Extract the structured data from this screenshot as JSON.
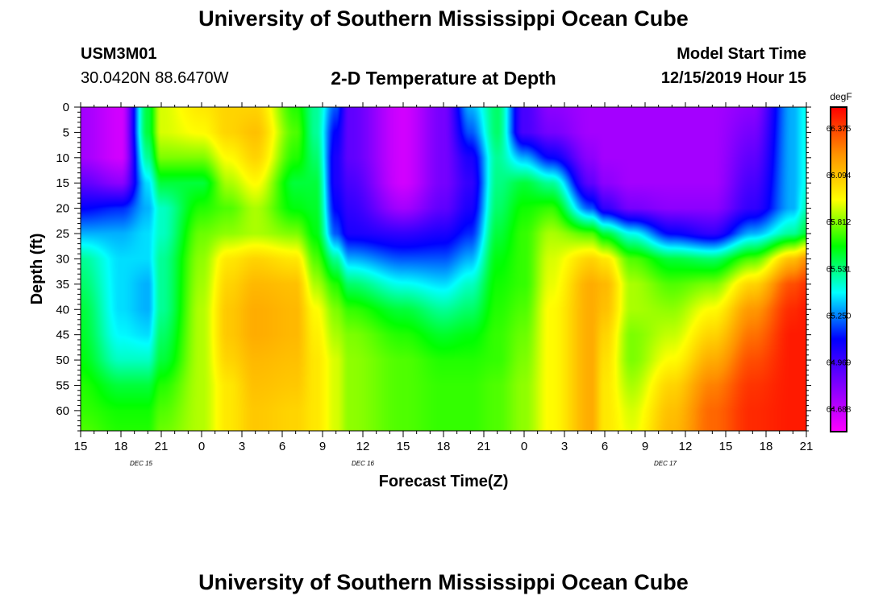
{
  "header": {
    "title": "University of Southern Mississippi Ocean Cube",
    "station": "USM3M01",
    "location": "30.0420N 88.6470W",
    "subtitle": "2-D Temperature at Depth",
    "model_start_label": "Model Start Time",
    "model_start_value": "12/15/2019 Hour 15"
  },
  "footer": {
    "title": "University of Southern Mississippi Ocean Cube"
  },
  "chart_data": {
    "type": "heatmap",
    "xlabel": "Forecast Time(Z)",
    "ylabel": "Depth (ft)",
    "x_ticks": [
      "15",
      "18",
      "21",
      "0",
      "3",
      "6",
      "9",
      "12",
      "15",
      "18",
      "21",
      "0",
      "3",
      "6",
      "9",
      "12",
      "15",
      "18",
      "21"
    ],
    "date_labels": [
      {
        "text": "DEC 15",
        "tick_index": 1.5
      },
      {
        "text": "DEC 16",
        "tick_index": 7
      },
      {
        "text": "DEC 17",
        "tick_index": 14.5
      }
    ],
    "x_range_hours": [
      0,
      54
    ],
    "y_ticks": [
      0,
      5,
      10,
      15,
      20,
      25,
      30,
      35,
      40,
      45,
      50,
      55,
      60
    ],
    "y_range": [
      0,
      64
    ],
    "colorbar": {
      "unit": "degF",
      "ticks": [
        66.375,
        66.094,
        65.812,
        65.531,
        65.25,
        64.969,
        64.688
      ],
      "min": 64.55,
      "max": 66.5,
      "colors": [
        "#ff00ff",
        "#8000ff",
        "#0000ff",
        "#00ffff",
        "#00ff00",
        "#ffff00",
        "#ff9000",
        "#ff0000"
      ]
    },
    "profile_depths": [
      0,
      5,
      10,
      15,
      20,
      25,
      30,
      35,
      40,
      45,
      50,
      55,
      60,
      64
    ],
    "profiles": [
      {
        "hour": 0,
        "t": [
          64.75,
          64.75,
          64.75,
          64.9,
          65.1,
          65.3,
          65.5,
          65.55,
          65.6,
          65.62,
          65.65,
          65.7,
          65.72,
          65.75
        ]
      },
      {
        "hour": 3,
        "t": [
          64.65,
          64.65,
          64.65,
          64.8,
          65.15,
          65.3,
          65.35,
          65.35,
          65.35,
          65.38,
          65.45,
          65.6,
          65.68,
          65.7
        ]
      },
      {
        "hour": 5,
        "t": [
          65.6,
          65.6,
          65.5,
          65.35,
          65.3,
          65.35,
          65.35,
          65.3,
          65.3,
          65.35,
          65.45,
          65.6,
          65.68,
          65.7
        ]
      },
      {
        "hour": 6,
        "t": [
          65.9,
          65.9,
          65.8,
          65.6,
          65.45,
          65.45,
          65.5,
          65.5,
          65.5,
          65.55,
          65.6,
          65.7,
          65.75,
          65.78
        ]
      },
      {
        "hour": 9,
        "t": [
          66.0,
          65.95,
          65.8,
          65.6,
          65.7,
          65.78,
          65.82,
          65.84,
          65.86,
          65.86,
          65.86,
          65.86,
          65.86,
          65.86
        ]
      },
      {
        "hour": 11,
        "t": [
          66.05,
          66.05,
          65.95,
          65.85,
          65.75,
          65.82,
          66.0,
          66.05,
          66.08,
          66.08,
          66.05,
          66.0,
          66.0,
          66.0
        ]
      },
      {
        "hour": 13,
        "t": [
          66.05,
          66.1,
          66.05,
          65.95,
          65.85,
          65.85,
          66.05,
          66.12,
          66.15,
          66.15,
          66.12,
          66.1,
          66.08,
          66.08
        ]
      },
      {
        "hour": 16,
        "t": [
          65.7,
          65.75,
          65.7,
          65.6,
          65.65,
          65.8,
          66.0,
          66.1,
          66.12,
          66.12,
          66.1,
          66.08,
          66.05,
          66.05
        ]
      },
      {
        "hour": 17.5,
        "t": [
          65.5,
          65.5,
          65.55,
          65.6,
          65.62,
          65.65,
          65.75,
          65.85,
          65.95,
          65.98,
          66.0,
          66.0,
          66.0,
          66.0
        ]
      },
      {
        "hour": 19,
        "t": [
          65.2,
          65.1,
          65.05,
          65.05,
          65.1,
          65.2,
          65.5,
          65.7,
          65.8,
          65.85,
          65.9,
          65.9,
          65.9,
          65.9
        ]
      },
      {
        "hour": 20,
        "t": [
          64.9,
          64.9,
          64.9,
          64.95,
          65.0,
          65.05,
          65.3,
          65.55,
          65.72,
          65.8,
          65.82,
          65.82,
          65.82,
          65.82
        ]
      },
      {
        "hour": 24,
        "t": [
          64.65,
          64.65,
          64.65,
          64.65,
          64.75,
          65.0,
          65.2,
          65.4,
          65.6,
          65.7,
          65.75,
          65.75,
          65.75,
          65.75
        ]
      },
      {
        "hour": 27,
        "t": [
          64.85,
          64.85,
          64.85,
          64.85,
          64.9,
          65.05,
          65.2,
          65.35,
          65.5,
          65.62,
          65.7,
          65.72,
          65.72,
          65.72
        ]
      },
      {
        "hour": 29,
        "t": [
          65.3,
          65.2,
          65.05,
          65.0,
          65.05,
          65.15,
          65.3,
          65.45,
          65.55,
          65.65,
          65.7,
          65.72,
          65.72,
          65.72
        ]
      },
      {
        "hour": 31,
        "t": [
          65.55,
          65.55,
          65.5,
          65.52,
          65.55,
          65.6,
          65.65,
          65.68,
          65.7,
          65.72,
          65.72,
          65.75,
          65.75,
          65.75
        ]
      },
      {
        "hour": 33,
        "t": [
          64.95,
          64.95,
          65.3,
          65.6,
          65.68,
          65.72,
          65.72,
          65.72,
          65.75,
          65.78,
          65.8,
          65.82,
          65.82,
          65.82
        ]
      },
      {
        "hour": 35,
        "t": [
          64.8,
          64.85,
          65.1,
          65.5,
          65.72,
          65.85,
          65.9,
          65.92,
          65.95,
          65.95,
          65.95,
          65.95,
          65.95,
          65.95
        ]
      },
      {
        "hour": 38,
        "t": [
          64.75,
          64.75,
          64.8,
          64.9,
          65.2,
          65.75,
          66.05,
          66.15,
          66.15,
          66.15,
          66.15,
          66.15,
          66.15,
          66.15
        ]
      },
      {
        "hour": 39,
        "t": [
          64.75,
          64.75,
          64.75,
          64.8,
          65.0,
          65.6,
          66.0,
          66.12,
          66.1,
          66.05,
          66.02,
          66.0,
          66.0,
          66.0
        ]
      },
      {
        "hour": 41,
        "t": [
          64.75,
          64.75,
          64.75,
          64.75,
          64.85,
          65.4,
          65.75,
          65.85,
          65.85,
          65.8,
          65.8,
          65.85,
          65.9,
          65.92
        ]
      },
      {
        "hour": 44,
        "t": [
          64.75,
          64.75,
          64.75,
          64.75,
          64.8,
          65.1,
          65.6,
          65.75,
          65.82,
          65.88,
          65.95,
          66.05,
          66.1,
          66.12
        ]
      },
      {
        "hour": 47,
        "t": [
          64.75,
          64.75,
          64.75,
          64.75,
          64.8,
          65.0,
          65.55,
          65.8,
          65.95,
          66.05,
          66.15,
          66.25,
          66.3,
          66.3
        ]
      },
      {
        "hour": 50,
        "t": [
          64.8,
          64.85,
          64.9,
          64.95,
          65.0,
          65.3,
          65.75,
          66.05,
          66.2,
          66.28,
          66.35,
          66.4,
          66.42,
          66.42
        ]
      },
      {
        "hour": 53,
        "t": [
          65.3,
          65.3,
          65.3,
          65.3,
          65.3,
          65.5,
          66.1,
          66.35,
          66.42,
          66.45,
          66.45,
          66.45,
          66.45,
          66.45
        ]
      },
      {
        "hour": 54,
        "t": [
          65.4,
          65.4,
          65.4,
          65.4,
          65.45,
          65.6,
          66.2,
          66.4,
          66.45,
          66.45,
          66.45,
          66.45,
          66.45,
          66.45
        ]
      }
    ]
  }
}
